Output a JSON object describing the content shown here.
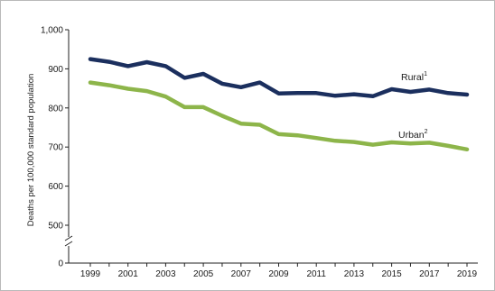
{
  "chart_data": {
    "type": "line",
    "title": "",
    "xlabel": "",
    "ylabel": "Deaths per 100,000 standard population",
    "x": [
      1999,
      2000,
      2001,
      2002,
      2003,
      2004,
      2005,
      2006,
      2007,
      2008,
      2009,
      2010,
      2011,
      2012,
      2013,
      2014,
      2015,
      2016,
      2017,
      2018,
      2019
    ],
    "x_tick_labels": [
      "1999",
      "2001",
      "2003",
      "2005",
      "2007",
      "2009",
      "2011",
      "2013",
      "2015",
      "2017",
      "2019"
    ],
    "y_tick_labels": [
      "0",
      "500",
      "600",
      "700",
      "800",
      "900",
      "1,000"
    ],
    "ylim": [
      0,
      1000
    ],
    "axis_break": [
      0,
      400
    ],
    "grid": false,
    "series": [
      {
        "name": "Rural",
        "footnote": "1",
        "color": "#1b2f5e",
        "values": [
          925,
          918,
          907,
          917,
          907,
          877,
          887,
          862,
          853,
          865,
          837,
          838,
          838,
          831,
          835,
          830,
          848,
          841,
          847,
          838,
          834
        ]
      },
      {
        "name": "Urban",
        "footnote": "2",
        "color": "#8db54a",
        "values": [
          865,
          858,
          849,
          843,
          829,
          802,
          802,
          780,
          760,
          757,
          733,
          730,
          723,
          716,
          713,
          706,
          712,
          709,
          711,
          703,
          694
        ]
      }
    ]
  }
}
